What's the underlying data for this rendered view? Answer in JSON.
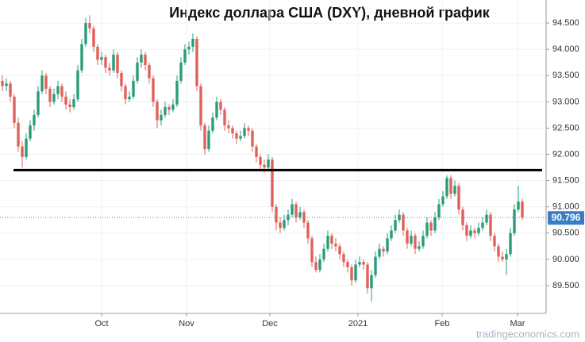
{
  "chart_data": {
    "type": "candlestick",
    "title": "Индекс доллара США (DXY), дневной график",
    "source": "tradingeconomics.com",
    "up_color": "#2a9d78",
    "down_color": "#e0605a",
    "last_price": 90.796,
    "hlines": [
      91.7
    ],
    "grid": true,
    "xlim": [
      -0.6,
      137
    ],
    "xticks": [
      {
        "value": 25,
        "label": "Oct"
      },
      {
        "value": 46.4,
        "label": "Nov"
      },
      {
        "value": 67.4,
        "label": "Dec"
      },
      {
        "value": 89.6,
        "label": "2021"
      },
      {
        "value": 110.8,
        "label": "Feb"
      },
      {
        "value": 129.8,
        "label": "Mar"
      }
    ],
    "ylim": [
      88.97,
      94.94
    ],
    "yticks": [
      {
        "value": 89.5,
        "label": "89.500"
      },
      {
        "value": 90,
        "label": "90.000"
      },
      {
        "value": 90.5,
        "label": "90.500"
      },
      {
        "value": 91,
        "label": "91.000"
      },
      {
        "value": 91.5,
        "label": "91.500"
      },
      {
        "value": 92,
        "label": "92.000"
      },
      {
        "value": 92.5,
        "label": "92.500"
      },
      {
        "value": 93,
        "label": "93.000"
      },
      {
        "value": 93.5,
        "label": "93.500"
      },
      {
        "value": 94,
        "label": "94.000"
      },
      {
        "value": 94.5,
        "label": "94.500"
      }
    ],
    "ohlc": [
      [
        93.4,
        93.5,
        93.2,
        93.3
      ],
      [
        93.3,
        93.45,
        93.2,
        93.35
      ],
      [
        93.35,
        93.4,
        93.0,
        93.1
      ],
      [
        93.1,
        93.15,
        92.5,
        92.6
      ],
      [
        92.6,
        92.7,
        92.05,
        92.15
      ],
      [
        92.15,
        92.25,
        91.75,
        91.95
      ],
      [
        91.95,
        92.4,
        91.9,
        92.3
      ],
      [
        92.3,
        92.65,
        92.25,
        92.55
      ],
      [
        92.55,
        92.85,
        92.45,
        92.75
      ],
      [
        92.75,
        93.3,
        92.7,
        93.2
      ],
      [
        93.2,
        93.6,
        93.15,
        93.5
      ],
      [
        93.5,
        93.55,
        93.15,
        93.25
      ],
      [
        93.25,
        93.3,
        92.9,
        93.0
      ],
      [
        93.0,
        93.25,
        92.95,
        93.15
      ],
      [
        93.15,
        93.4,
        93.05,
        93.3
      ],
      [
        93.3,
        93.35,
        93.0,
        93.1
      ],
      [
        93.1,
        93.2,
        92.85,
        92.95
      ],
      [
        92.95,
        93.05,
        92.8,
        92.9
      ],
      [
        92.9,
        93.15,
        92.85,
        93.05
      ],
      [
        93.05,
        93.7,
        93.0,
        93.6
      ],
      [
        93.6,
        94.2,
        93.55,
        94.1
      ],
      [
        94.1,
        94.6,
        94.05,
        94.5
      ],
      [
        94.5,
        94.65,
        94.3,
        94.4
      ],
      [
        94.4,
        94.45,
        93.95,
        94.05
      ],
      [
        94.05,
        94.1,
        93.7,
        93.8
      ],
      [
        93.8,
        93.95,
        93.7,
        93.85
      ],
      [
        93.85,
        93.9,
        93.55,
        93.65
      ],
      [
        93.65,
        93.75,
        93.5,
        93.6
      ],
      [
        93.6,
        94.0,
        93.55,
        93.9
      ],
      [
        93.9,
        93.95,
        93.45,
        93.55
      ],
      [
        93.55,
        93.6,
        93.2,
        93.3
      ],
      [
        93.3,
        93.35,
        92.95,
        93.05
      ],
      [
        93.05,
        93.2,
        93.0,
        93.1
      ],
      [
        93.1,
        93.5,
        93.05,
        93.4
      ],
      [
        93.4,
        93.85,
        93.35,
        93.75
      ],
      [
        93.75,
        94.0,
        93.65,
        93.9
      ],
      [
        93.9,
        93.95,
        93.6,
        93.7
      ],
      [
        93.7,
        93.75,
        93.35,
        93.45
      ],
      [
        93.45,
        93.5,
        92.9,
        93.0
      ],
      [
        93.0,
        93.05,
        92.5,
        92.65
      ],
      [
        92.65,
        92.85,
        92.55,
        92.75
      ],
      [
        92.75,
        93.0,
        92.7,
        92.9
      ],
      [
        92.9,
        92.95,
        92.75,
        92.85
      ],
      [
        92.85,
        93.05,
        92.8,
        92.95
      ],
      [
        92.95,
        93.5,
        92.9,
        93.4
      ],
      [
        93.4,
        93.85,
        93.35,
        93.75
      ],
      [
        93.75,
        94.1,
        93.7,
        94.0
      ],
      [
        94.0,
        94.15,
        93.9,
        94.05
      ],
      [
        94.05,
        94.3,
        93.95,
        94.2
      ],
      [
        94.2,
        94.25,
        93.2,
        93.3
      ],
      [
        93.3,
        93.35,
        92.45,
        92.55
      ],
      [
        92.55,
        92.6,
        92.0,
        92.1
      ],
      [
        92.1,
        92.55,
        92.05,
        92.45
      ],
      [
        92.45,
        92.8,
        92.4,
        92.7
      ],
      [
        92.7,
        93.1,
        92.65,
        93.0
      ],
      [
        93.0,
        93.05,
        92.75,
        92.85
      ],
      [
        92.85,
        92.9,
        92.45,
        92.55
      ],
      [
        92.55,
        92.65,
        92.4,
        92.5
      ],
      [
        92.5,
        92.55,
        92.3,
        92.4
      ],
      [
        92.4,
        92.45,
        92.2,
        92.3
      ],
      [
        92.3,
        92.45,
        92.25,
        92.35
      ],
      [
        92.35,
        92.6,
        92.3,
        92.5
      ],
      [
        92.5,
        92.55,
        92.35,
        92.45
      ],
      [
        92.45,
        92.5,
        92.05,
        92.15
      ],
      [
        92.15,
        92.2,
        91.85,
        91.95
      ],
      [
        91.95,
        92.0,
        91.7,
        91.8
      ],
      [
        91.8,
        91.9,
        91.65,
        91.75
      ],
      [
        91.75,
        92.0,
        91.7,
        91.9
      ],
      [
        91.9,
        91.95,
        90.9,
        91.0
      ],
      [
        91.0,
        91.05,
        90.55,
        90.7
      ],
      [
        90.7,
        90.8,
        90.5,
        90.6
      ],
      [
        90.6,
        90.85,
        90.55,
        90.75
      ],
      [
        90.75,
        90.95,
        90.65,
        90.85
      ],
      [
        90.85,
        91.15,
        90.8,
        91.05
      ],
      [
        91.05,
        91.1,
        90.7,
        90.8
      ],
      [
        90.8,
        91.0,
        90.75,
        90.9
      ],
      [
        90.9,
        90.95,
        90.6,
        90.7
      ],
      [
        90.7,
        90.75,
        90.3,
        90.4
      ],
      [
        90.4,
        90.45,
        89.85,
        89.95
      ],
      [
        89.95,
        90.05,
        89.75,
        89.8
      ],
      [
        89.8,
        90.1,
        89.75,
        90.0
      ],
      [
        90.0,
        90.3,
        89.95,
        90.2
      ],
      [
        90.2,
        90.55,
        90.15,
        90.45
      ],
      [
        90.45,
        90.5,
        90.2,
        90.3
      ],
      [
        90.3,
        90.4,
        90.15,
        90.25
      ],
      [
        90.25,
        90.3,
        90.0,
        90.1
      ],
      [
        90.1,
        90.15,
        89.85,
        89.95
      ],
      [
        89.95,
        90.0,
        89.75,
        89.85
      ],
      [
        89.85,
        89.9,
        89.5,
        89.6
      ],
      [
        89.6,
        90.0,
        89.55,
        89.9
      ],
      [
        89.9,
        90.05,
        89.85,
        89.95
      ],
      [
        89.95,
        90.0,
        89.8,
        89.9
      ],
      [
        89.9,
        89.95,
        89.35,
        89.45
      ],
      [
        89.45,
        89.8,
        89.2,
        89.7
      ],
      [
        89.7,
        90.15,
        89.65,
        90.05
      ],
      [
        90.05,
        90.3,
        90.0,
        90.2
      ],
      [
        90.2,
        90.25,
        90.05,
        90.15
      ],
      [
        90.15,
        90.5,
        90.1,
        90.4
      ],
      [
        90.4,
        90.65,
        90.35,
        90.55
      ],
      [
        90.55,
        90.85,
        90.5,
        90.75
      ],
      [
        90.75,
        90.95,
        90.7,
        90.85
      ],
      [
        90.85,
        90.9,
        90.45,
        90.55
      ],
      [
        90.55,
        90.6,
        90.2,
        90.3
      ],
      [
        90.3,
        90.55,
        90.25,
        90.45
      ],
      [
        90.45,
        90.5,
        90.1,
        90.2
      ],
      [
        90.2,
        90.35,
        90.15,
        90.25
      ],
      [
        90.25,
        90.55,
        90.2,
        90.45
      ],
      [
        90.45,
        90.8,
        90.4,
        90.7
      ],
      [
        90.7,
        90.75,
        90.45,
        90.55
      ],
      [
        90.55,
        90.9,
        90.5,
        90.8
      ],
      [
        90.8,
        91.15,
        90.75,
        91.05
      ],
      [
        91.05,
        91.3,
        91.0,
        91.2
      ],
      [
        91.2,
        91.6,
        91.15,
        91.55
      ],
      [
        91.55,
        91.6,
        91.15,
        91.25
      ],
      [
        91.25,
        91.5,
        91.2,
        91.4
      ],
      [
        91.4,
        91.45,
        90.85,
        90.95
      ],
      [
        90.95,
        91.0,
        90.55,
        90.65
      ],
      [
        90.65,
        90.7,
        90.35,
        90.45
      ],
      [
        90.45,
        90.65,
        90.4,
        90.55
      ],
      [
        90.55,
        90.6,
        90.4,
        90.5
      ],
      [
        90.5,
        90.7,
        90.45,
        90.6
      ],
      [
        90.6,
        90.8,
        90.55,
        90.7
      ],
      [
        90.7,
        90.95,
        90.65,
        90.85
      ],
      [
        90.85,
        90.9,
        90.35,
        90.45
      ],
      [
        90.45,
        90.5,
        90.15,
        90.25
      ],
      [
        90.25,
        90.3,
        89.95,
        90.05
      ],
      [
        90.05,
        90.15,
        89.95,
        90.0
      ],
      [
        90.0,
        90.2,
        89.7,
        90.1
      ],
      [
        90.1,
        90.6,
        90.05,
        90.5
      ],
      [
        90.5,
        91.05,
        90.45,
        90.95
      ],
      [
        90.95,
        91.4,
        90.9,
        91.1
      ],
      [
        91.1,
        91.15,
        90.75,
        90.796
      ]
    ]
  }
}
